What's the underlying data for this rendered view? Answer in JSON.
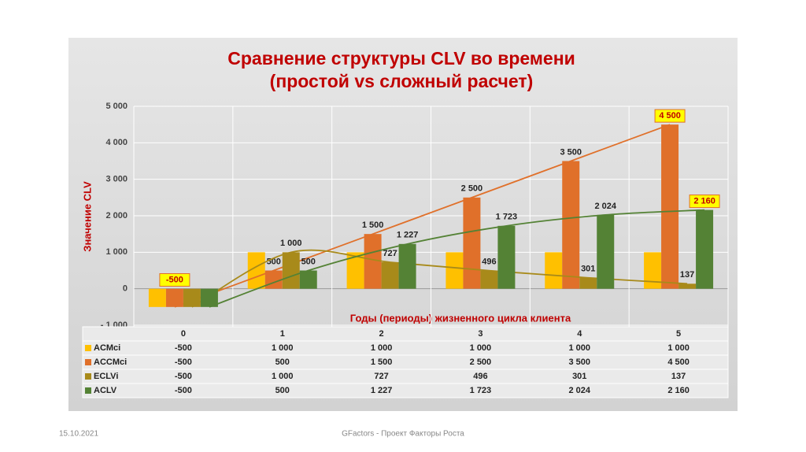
{
  "chart_data": {
    "type": "bar",
    "title": "Сравнение структуры CLV во времени",
    "subtitle": "(простой vs сложный расчет)",
    "y_label": "Значение CLV",
    "x_label": "Годы (периоды) жизненного цикла клиента",
    "categories": [
      "0",
      "1",
      "2",
      "3",
      "4",
      "5"
    ],
    "ylim": [
      -1000,
      5000
    ],
    "yticks": [
      {
        "value": -1000,
        "label": "- 1 000"
      },
      0,
      {
        "value": 1000,
        "label": "1 000"
      },
      {
        "value": 2000,
        "label": "2 000"
      },
      {
        "value": 3000,
        "label": "3 000"
      },
      {
        "value": 4000,
        "label": "4 000"
      },
      {
        "value": 5000,
        "label": "5 000"
      }
    ],
    "grid": true,
    "series": [
      {
        "name": "ACMci",
        "color": "#ffc000",
        "values": [
          -500,
          1000,
          1000,
          1000,
          1000,
          1000
        ],
        "value_labels": [
          "-500",
          "1 000",
          "1 000",
          "1 000",
          "1 000",
          "1 000"
        ],
        "show_labels": false,
        "trendline": false,
        "highlight": []
      },
      {
        "name": "ACCMci",
        "color": "#e0702a",
        "values": [
          -500,
          500,
          1500,
          2500,
          3500,
          4500
        ],
        "value_labels": [
          "-500",
          "500",
          "1 500",
          "2 500",
          "3 500",
          "4 500"
        ],
        "show_labels": true,
        "trendline": true,
        "highlight": [
          0,
          5
        ]
      },
      {
        "name": "ECLVi",
        "color": "#a88a1a",
        "values": [
          -500,
          1000,
          727,
          496,
          301,
          137
        ],
        "value_labels": [
          "-500",
          "1 000",
          "727",
          "496",
          "301",
          "137"
        ],
        "show_labels": true,
        "trendline": true,
        "highlight": []
      },
      {
        "name": "ACLV",
        "color": "#548235",
        "values": [
          -500,
          500,
          1227,
          1723,
          2024,
          2160
        ],
        "value_labels": [
          "-500",
          "500",
          "1 227",
          "1 723",
          "2 024",
          "2 160"
        ],
        "show_labels": true,
        "trendline": true,
        "highlight": [
          5
        ]
      }
    ]
  },
  "footer": {
    "date": "15.10.2021",
    "text": "GFactors - Проект Факторы Роста"
  }
}
